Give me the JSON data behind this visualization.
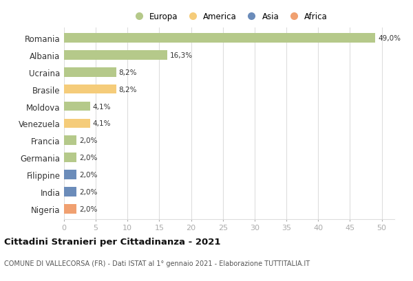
{
  "countries": [
    "Romania",
    "Albania",
    "Ucraina",
    "Brasile",
    "Moldova",
    "Venezuela",
    "Francia",
    "Germania",
    "Filippine",
    "India",
    "Nigeria"
  ],
  "values": [
    49.0,
    16.3,
    8.2,
    8.2,
    4.1,
    4.1,
    2.0,
    2.0,
    2.0,
    2.0,
    2.0
  ],
  "labels": [
    "49,0%",
    "16,3%",
    "8,2%",
    "8,2%",
    "4,1%",
    "4,1%",
    "2,0%",
    "2,0%",
    "2,0%",
    "2,0%",
    "2,0%"
  ],
  "colors": [
    "#b5c98a",
    "#b5c98a",
    "#b5c98a",
    "#f5cc7a",
    "#b5c98a",
    "#f5cc7a",
    "#b5c98a",
    "#b5c98a",
    "#6b8cba",
    "#6b8cba",
    "#f0a070"
  ],
  "legend_labels": [
    "Europa",
    "America",
    "Asia",
    "Africa"
  ],
  "legend_colors": [
    "#b5c98a",
    "#f5cc7a",
    "#6b8cba",
    "#f0a070"
  ],
  "title": "Cittadini Stranieri per Cittadinanza - 2021",
  "subtitle": "COMUNE DI VALLECORSA (FR) - Dati ISTAT al 1° gennaio 2021 - Elaborazione TUTTITALIA.IT",
  "xlim": [
    0,
    52
  ],
  "xticks": [
    0,
    5,
    10,
    15,
    20,
    25,
    30,
    35,
    40,
    45,
    50
  ],
  "background_color": "#ffffff",
  "grid_color": "#dddddd"
}
